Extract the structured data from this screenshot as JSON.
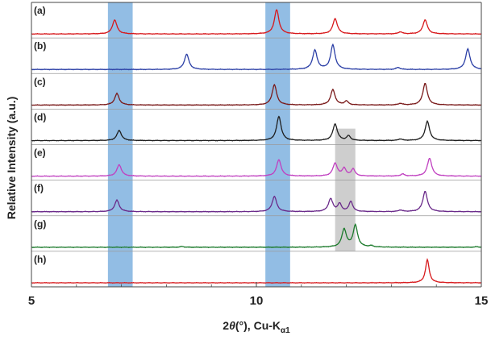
{
  "chart_data": {
    "type": "line",
    "xlabel_parts": {
      "main": "2",
      "theta": "θ",
      "rest": "(°), Cu-K",
      "sub": "α1"
    },
    "ylabel": "Relative Intensity (a.u.)",
    "xlim": [
      5,
      15
    ],
    "x_ticks": [
      {
        "value": 5,
        "label": "5"
      },
      {
        "value": 10,
        "label": "10"
      },
      {
        "value": 15,
        "label": "15"
      }
    ],
    "grid": false,
    "highlight_bands": [
      {
        "x": [
          6.7,
          7.25
        ],
        "color": "#7fb2df"
      },
      {
        "x": [
          10.2,
          10.75
        ],
        "color": "#7fb2df"
      },
      {
        "x": [
          11.75,
          12.2
        ],
        "color": "#c6c6c6"
      }
    ],
    "series": [
      {
        "label": "(a)",
        "color": "#d7191c",
        "baseline": 0.05,
        "peaks": [
          [
            6.85,
            0.55,
            0.06
          ],
          [
            10.45,
            0.95,
            0.06
          ],
          [
            11.75,
            0.6,
            0.06
          ],
          [
            13.2,
            0.08,
            0.05
          ],
          [
            13.75,
            0.55,
            0.06
          ]
        ]
      },
      {
        "label": "(b)",
        "color": "#2b3fa6",
        "baseline": 0.05,
        "peaks": [
          [
            8.45,
            0.6,
            0.06
          ],
          [
            11.3,
            0.75,
            0.06
          ],
          [
            11.7,
            0.95,
            0.06
          ],
          [
            13.15,
            0.08,
            0.05
          ],
          [
            14.7,
            0.8,
            0.06
          ]
        ]
      },
      {
        "label": "(c)",
        "color": "#7a1a1a",
        "baseline": 0.08,
        "peaks": [
          [
            6.9,
            0.45,
            0.06
          ],
          [
            10.4,
            0.8,
            0.06
          ],
          [
            11.7,
            0.6,
            0.06
          ],
          [
            12.0,
            0.15,
            0.05
          ],
          [
            13.2,
            0.06,
            0.05
          ],
          [
            13.75,
            0.85,
            0.06
          ]
        ]
      },
      {
        "label": "(d)",
        "color": "#1e1e1e",
        "baseline": 0.08,
        "peaks": [
          [
            6.95,
            0.4,
            0.06
          ],
          [
            10.5,
            0.95,
            0.06
          ],
          [
            11.75,
            0.65,
            0.06
          ],
          [
            12.05,
            0.18,
            0.05
          ],
          [
            13.2,
            0.06,
            0.05
          ],
          [
            13.8,
            0.75,
            0.06
          ]
        ]
      },
      {
        "label": "(e)",
        "color": "#c040c0",
        "baseline": 0.1,
        "peaks": [
          [
            6.95,
            0.45,
            0.06
          ],
          [
            10.5,
            0.65,
            0.06
          ],
          [
            11.75,
            0.5,
            0.06
          ],
          [
            11.95,
            0.3,
            0.05
          ],
          [
            12.15,
            0.28,
            0.05
          ],
          [
            13.25,
            0.08,
            0.05
          ],
          [
            13.85,
            0.7,
            0.06
          ]
        ]
      },
      {
        "label": "(f)",
        "color": "#6a2a8a",
        "baseline": 0.08,
        "peaks": [
          [
            6.9,
            0.45,
            0.06
          ],
          [
            10.4,
            0.6,
            0.06
          ],
          [
            11.65,
            0.5,
            0.06
          ],
          [
            11.85,
            0.3,
            0.05
          ],
          [
            12.1,
            0.4,
            0.05
          ],
          [
            13.2,
            0.06,
            0.05
          ],
          [
            13.75,
            0.8,
            0.06
          ]
        ]
      },
      {
        "label": "(g)",
        "color": "#1b7a2b",
        "baseline": 0.05,
        "peaks": [
          [
            8.35,
            0.03,
            0.05
          ],
          [
            11.95,
            0.7,
            0.06
          ],
          [
            12.2,
            0.85,
            0.06
          ],
          [
            12.55,
            0.05,
            0.05
          ],
          [
            14.9,
            0.02,
            0.05
          ]
        ]
      },
      {
        "label": "(h)",
        "color": "#d7191c",
        "baseline": 0.05,
        "peaks": [
          [
            13.8,
            0.9,
            0.05
          ]
        ]
      }
    ]
  }
}
